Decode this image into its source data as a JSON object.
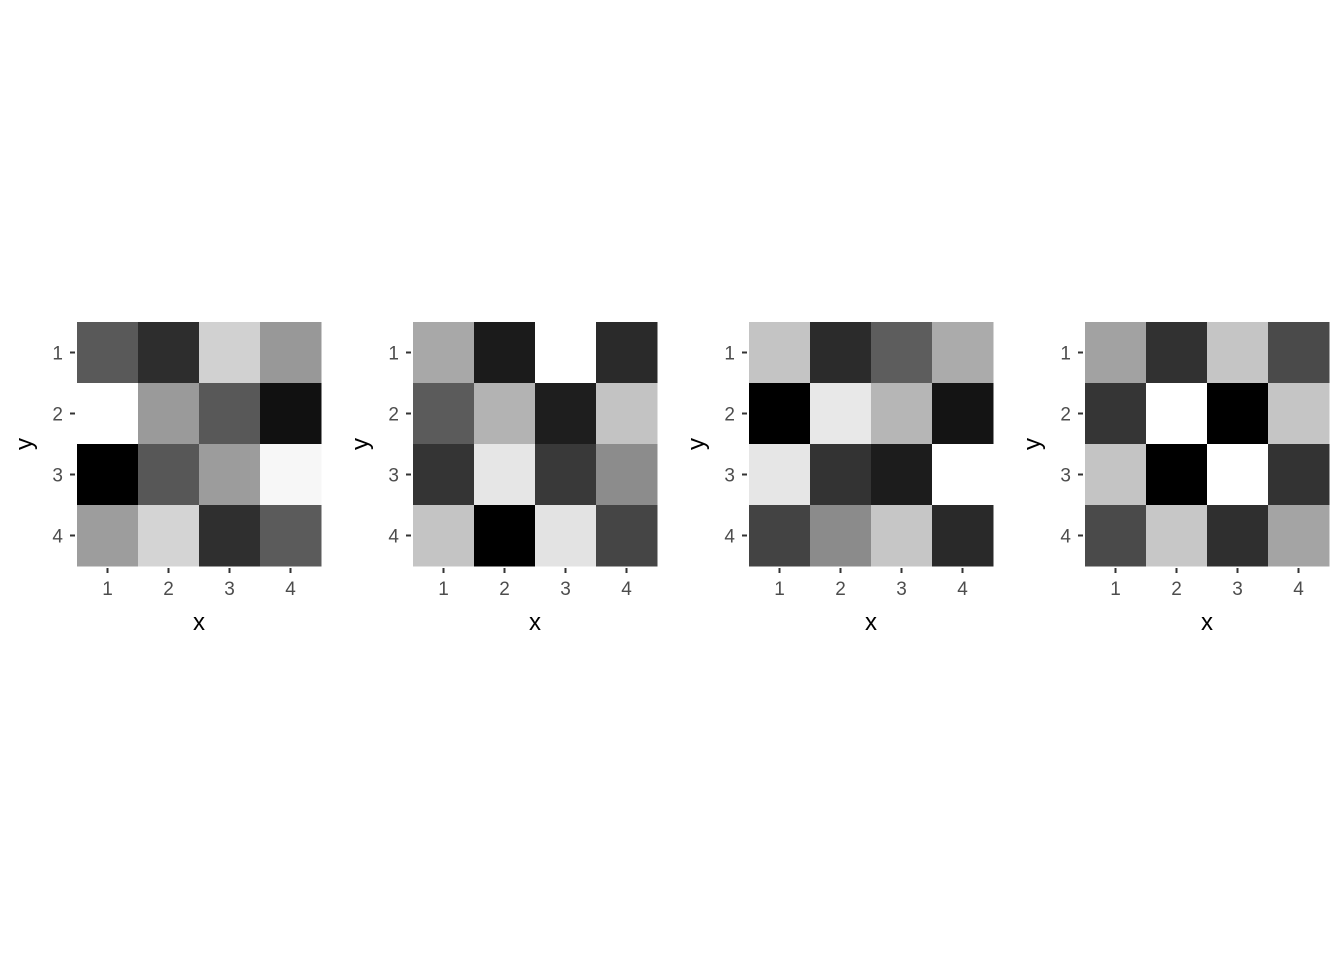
{
  "chart_data": [
    {
      "type": "heatmap",
      "xlabel": "x",
      "ylabel": "y",
      "x_ticks": [
        "1",
        "2",
        "3",
        "4"
      ],
      "y_ticks": [
        "1",
        "2",
        "3",
        "4"
      ],
      "legend": "none",
      "grid": false,
      "cells": [
        [
          "#595959",
          "#2d2d2d",
          "#d1d1d1",
          "#989898"
        ],
        [
          "#ffffff",
          "#9a9a9a",
          "#585858",
          "#111111"
        ],
        [
          "#000000",
          "#575757",
          "#9c9c9c",
          "#f7f7f7"
        ],
        [
          "#9d9d9d",
          "#d4d4d4",
          "#2f2f2f",
          "#5b5b5b"
        ]
      ]
    },
    {
      "type": "heatmap",
      "xlabel": "x",
      "ylabel": "y",
      "x_ticks": [
        "1",
        "2",
        "3",
        "4"
      ],
      "y_ticks": [
        "1",
        "2",
        "3",
        "4"
      ],
      "legend": "none",
      "grid": false,
      "cells": [
        [
          "#a8a8a8",
          "#1b1b1b",
          "#ffffff",
          "#2a2a2a"
        ],
        [
          "#5b5b5b",
          "#b3b3b3",
          "#1e1e1e",
          "#c3c3c3"
        ],
        [
          "#343434",
          "#e6e6e6",
          "#393939",
          "#8c8c8c"
        ],
        [
          "#c4c4c4",
          "#000000",
          "#e3e3e3",
          "#454545"
        ]
      ]
    },
    {
      "type": "heatmap",
      "xlabel": "x",
      "ylabel": "y",
      "x_ticks": [
        "1",
        "2",
        "3",
        "4"
      ],
      "y_ticks": [
        "1",
        "2",
        "3",
        "4"
      ],
      "legend": "none",
      "grid": false,
      "cells": [
        [
          "#c4c4c4",
          "#2b2b2b",
          "#5d5d5d",
          "#ababab"
        ],
        [
          "#000000",
          "#e8e8e8",
          "#b6b6b6",
          "#141414"
        ],
        [
          "#e6e6e6",
          "#333333",
          "#1c1c1c",
          "#ffffff"
        ],
        [
          "#434343",
          "#8b8b8b",
          "#c6c6c6",
          "#292929"
        ]
      ]
    },
    {
      "type": "heatmap",
      "xlabel": "x",
      "ylabel": "y",
      "x_ticks": [
        "1",
        "2",
        "3",
        "4"
      ],
      "y_ticks": [
        "1",
        "2",
        "3",
        "4"
      ],
      "legend": "none",
      "grid": false,
      "cells": [
        [
          "#a2a2a2",
          "#313131",
          "#c5c5c5",
          "#4a4a4a"
        ],
        [
          "#353535",
          "#ffffff",
          "#000000",
          "#c5c5c5"
        ],
        [
          "#c4c4c4",
          "#000000",
          "#ffffff",
          "#333333"
        ],
        [
          "#4a4a4a",
          "#c7c7c7",
          "#2f2f2f",
          "#a4a4a4"
        ]
      ]
    }
  ]
}
